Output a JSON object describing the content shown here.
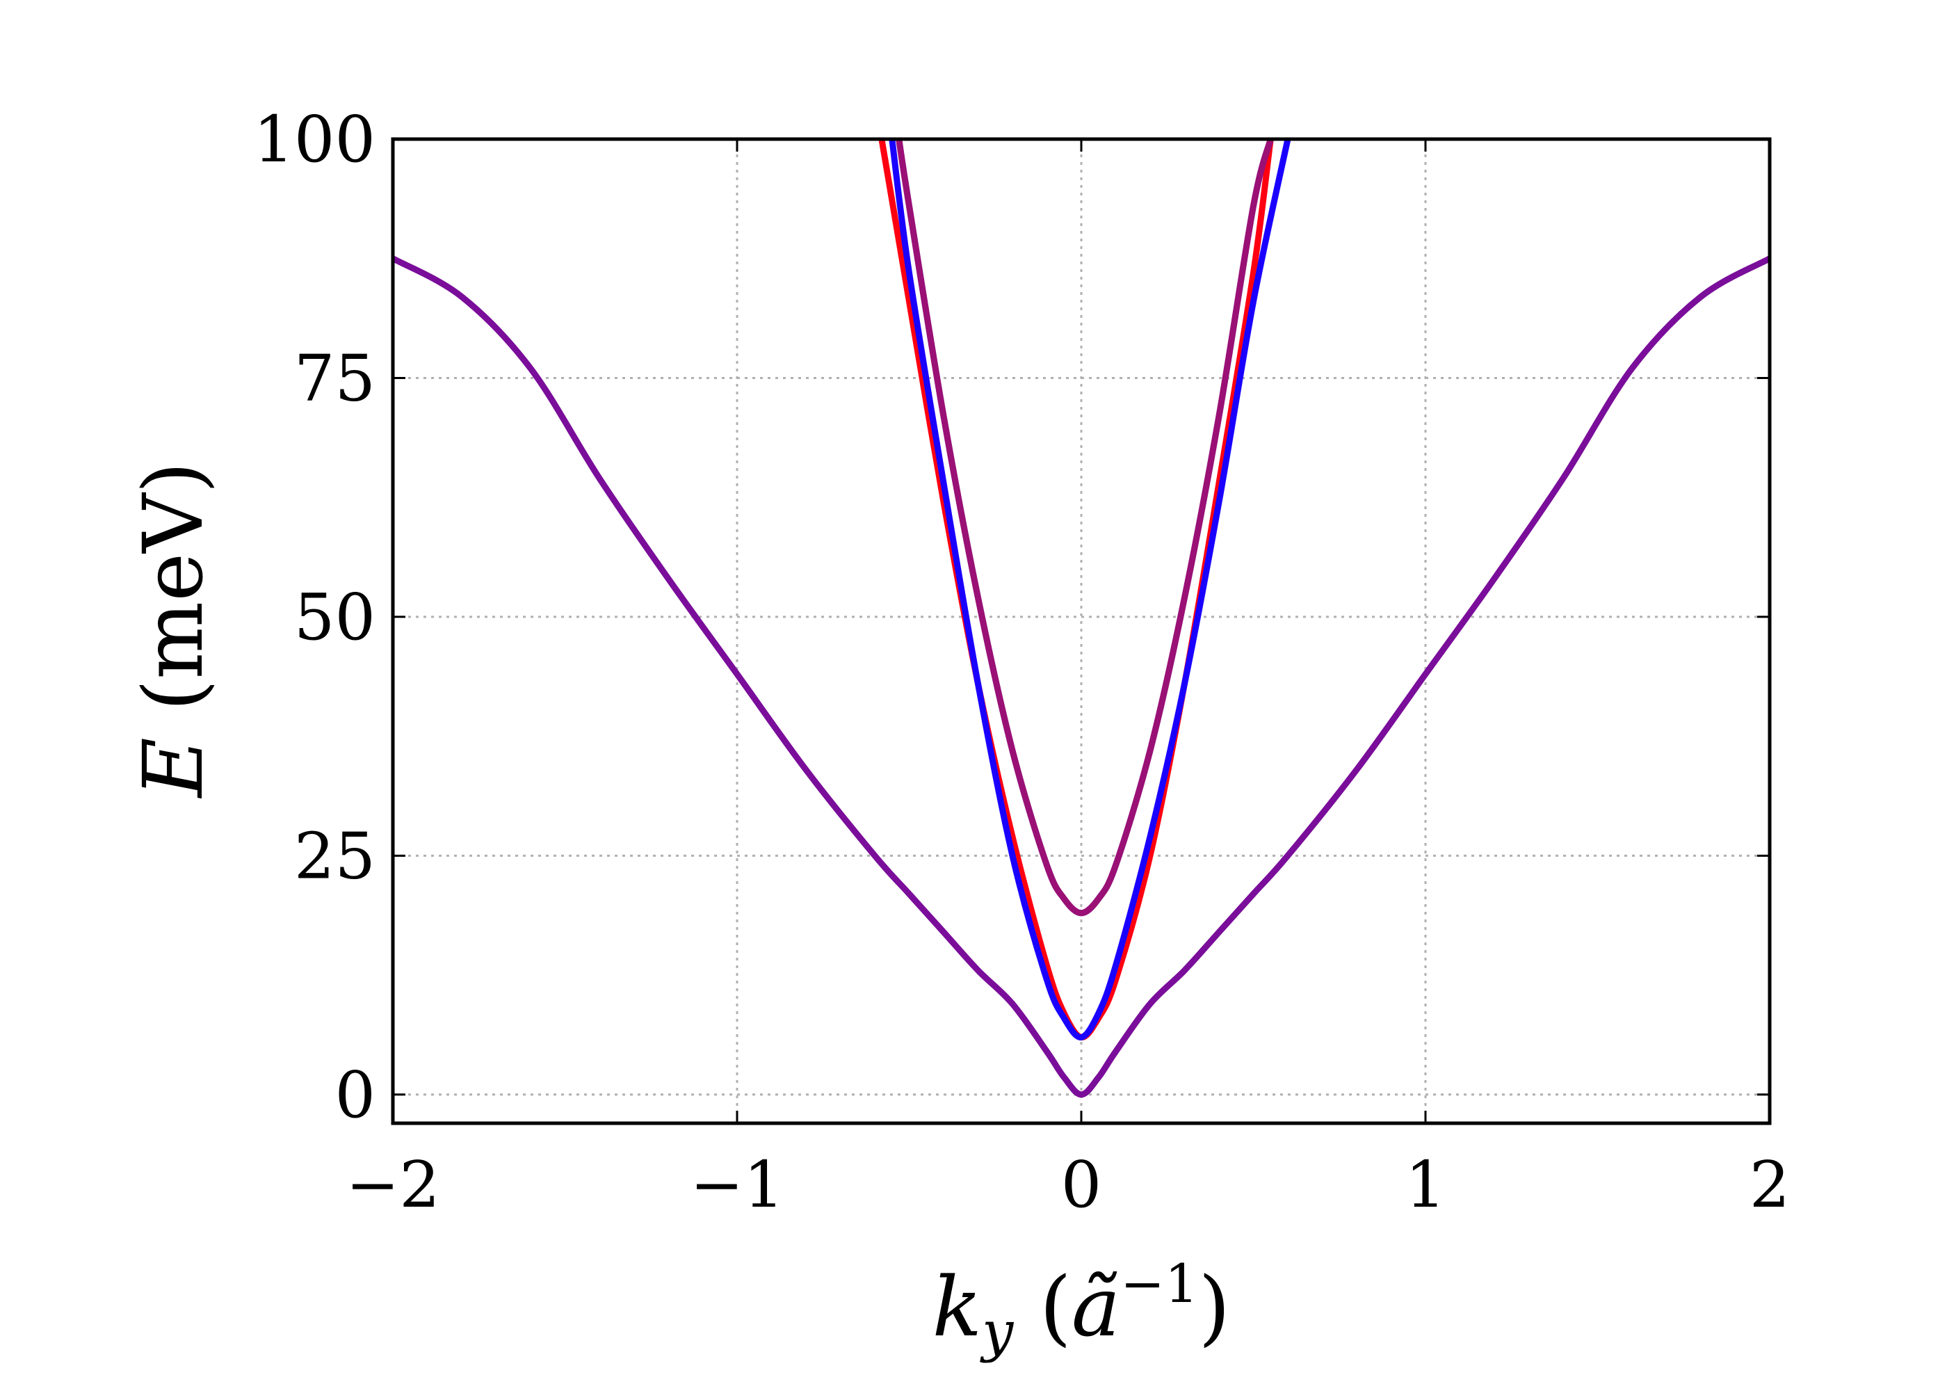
{
  "chart_data": {
    "type": "line",
    "title": "",
    "xlabel": {
      "var": "k",
      "sub": "y",
      "unit_base": "ã",
      "unit_exp": "−1"
    },
    "ylabel": {
      "var": "E",
      "unit": "(meV)"
    },
    "xlim": [
      -2,
      2
    ],
    "ylim": [
      -3,
      100
    ],
    "x_ticks": [
      -2,
      -1,
      0,
      1,
      2
    ],
    "x_tick_labels": [
      "−2",
      "−1",
      "0",
      "1",
      "2"
    ],
    "y_ticks": [
      0,
      25,
      50,
      75,
      100
    ],
    "y_tick_labels": [
      "0",
      "25",
      "50",
      "75",
      "100"
    ],
    "grid": true,
    "legend": "none",
    "series": [
      {
        "color": "#7a0d9a",
        "x": [
          -2,
          -1.8,
          -1.6,
          -1.4,
          -1.2,
          -1.0,
          -0.8,
          -0.6,
          -0.5,
          -0.4,
          -0.3,
          -0.2,
          -0.1,
          -0.05,
          0,
          0.05,
          0.1,
          0.2,
          0.3,
          0.4,
          0.5,
          0.6,
          0.8,
          1.0,
          1.2,
          1.4,
          1.6,
          1.8,
          2.0
        ],
        "y": [
          87.5,
          83.5,
          76,
          64.5,
          54,
          44,
          34,
          25,
          21,
          17,
          13,
          9.5,
          4.5,
          1.8,
          0,
          1.8,
          4.5,
          9.5,
          13,
          17,
          21,
          25,
          34,
          44,
          54,
          64.5,
          76,
          83.5,
          87.5
        ]
      },
      {
        "color": "#ff0011",
        "x": [
          -0.58,
          -0.5,
          -0.4,
          -0.3,
          -0.2,
          -0.1,
          -0.05,
          0,
          0.05,
          0.1,
          0.2,
          0.3,
          0.4,
          0.5,
          0.55
        ],
        "y": [
          100,
          83,
          62,
          43,
          27,
          13.5,
          8.5,
          6,
          8,
          12,
          25,
          43,
          64,
          86,
          100
        ]
      },
      {
        "color": "#1a00ff",
        "x": [
          -0.55,
          -0.5,
          -0.4,
          -0.3,
          -0.2,
          -0.1,
          -0.05,
          0,
          0.05,
          0.1,
          0.2,
          0.3,
          0.4,
          0.5,
          0.6
        ],
        "y": [
          100,
          86,
          64,
          43,
          25,
          12,
          8,
          6,
          8.5,
          13.5,
          27,
          43,
          62,
          83,
          100
        ]
      },
      {
        "color": "#6a1ab0",
        "x": [
          -0.53,
          -0.5,
          -0.4,
          -0.3,
          -0.2,
          -0.1,
          -0.05,
          0,
          0.05,
          0.1,
          0.2,
          0.3,
          0.4,
          0.5,
          0.55
        ],
        "y": [
          100,
          93,
          71,
          52,
          36,
          24,
          20.5,
          19,
          20.5,
          24,
          36,
          52,
          71,
          93,
          100
        ]
      },
      {
        "color": "#9a1075",
        "x": [
          -0.53,
          -0.5,
          -0.4,
          -0.3,
          -0.2,
          -0.1,
          -0.05,
          0,
          0.05,
          0.1,
          0.2,
          0.3,
          0.4,
          0.5,
          0.55
        ],
        "y": [
          100,
          93,
          71,
          52,
          36,
          24,
          20.5,
          19,
          20.5,
          24,
          36,
          52,
          71,
          93,
          100
        ]
      }
    ]
  }
}
